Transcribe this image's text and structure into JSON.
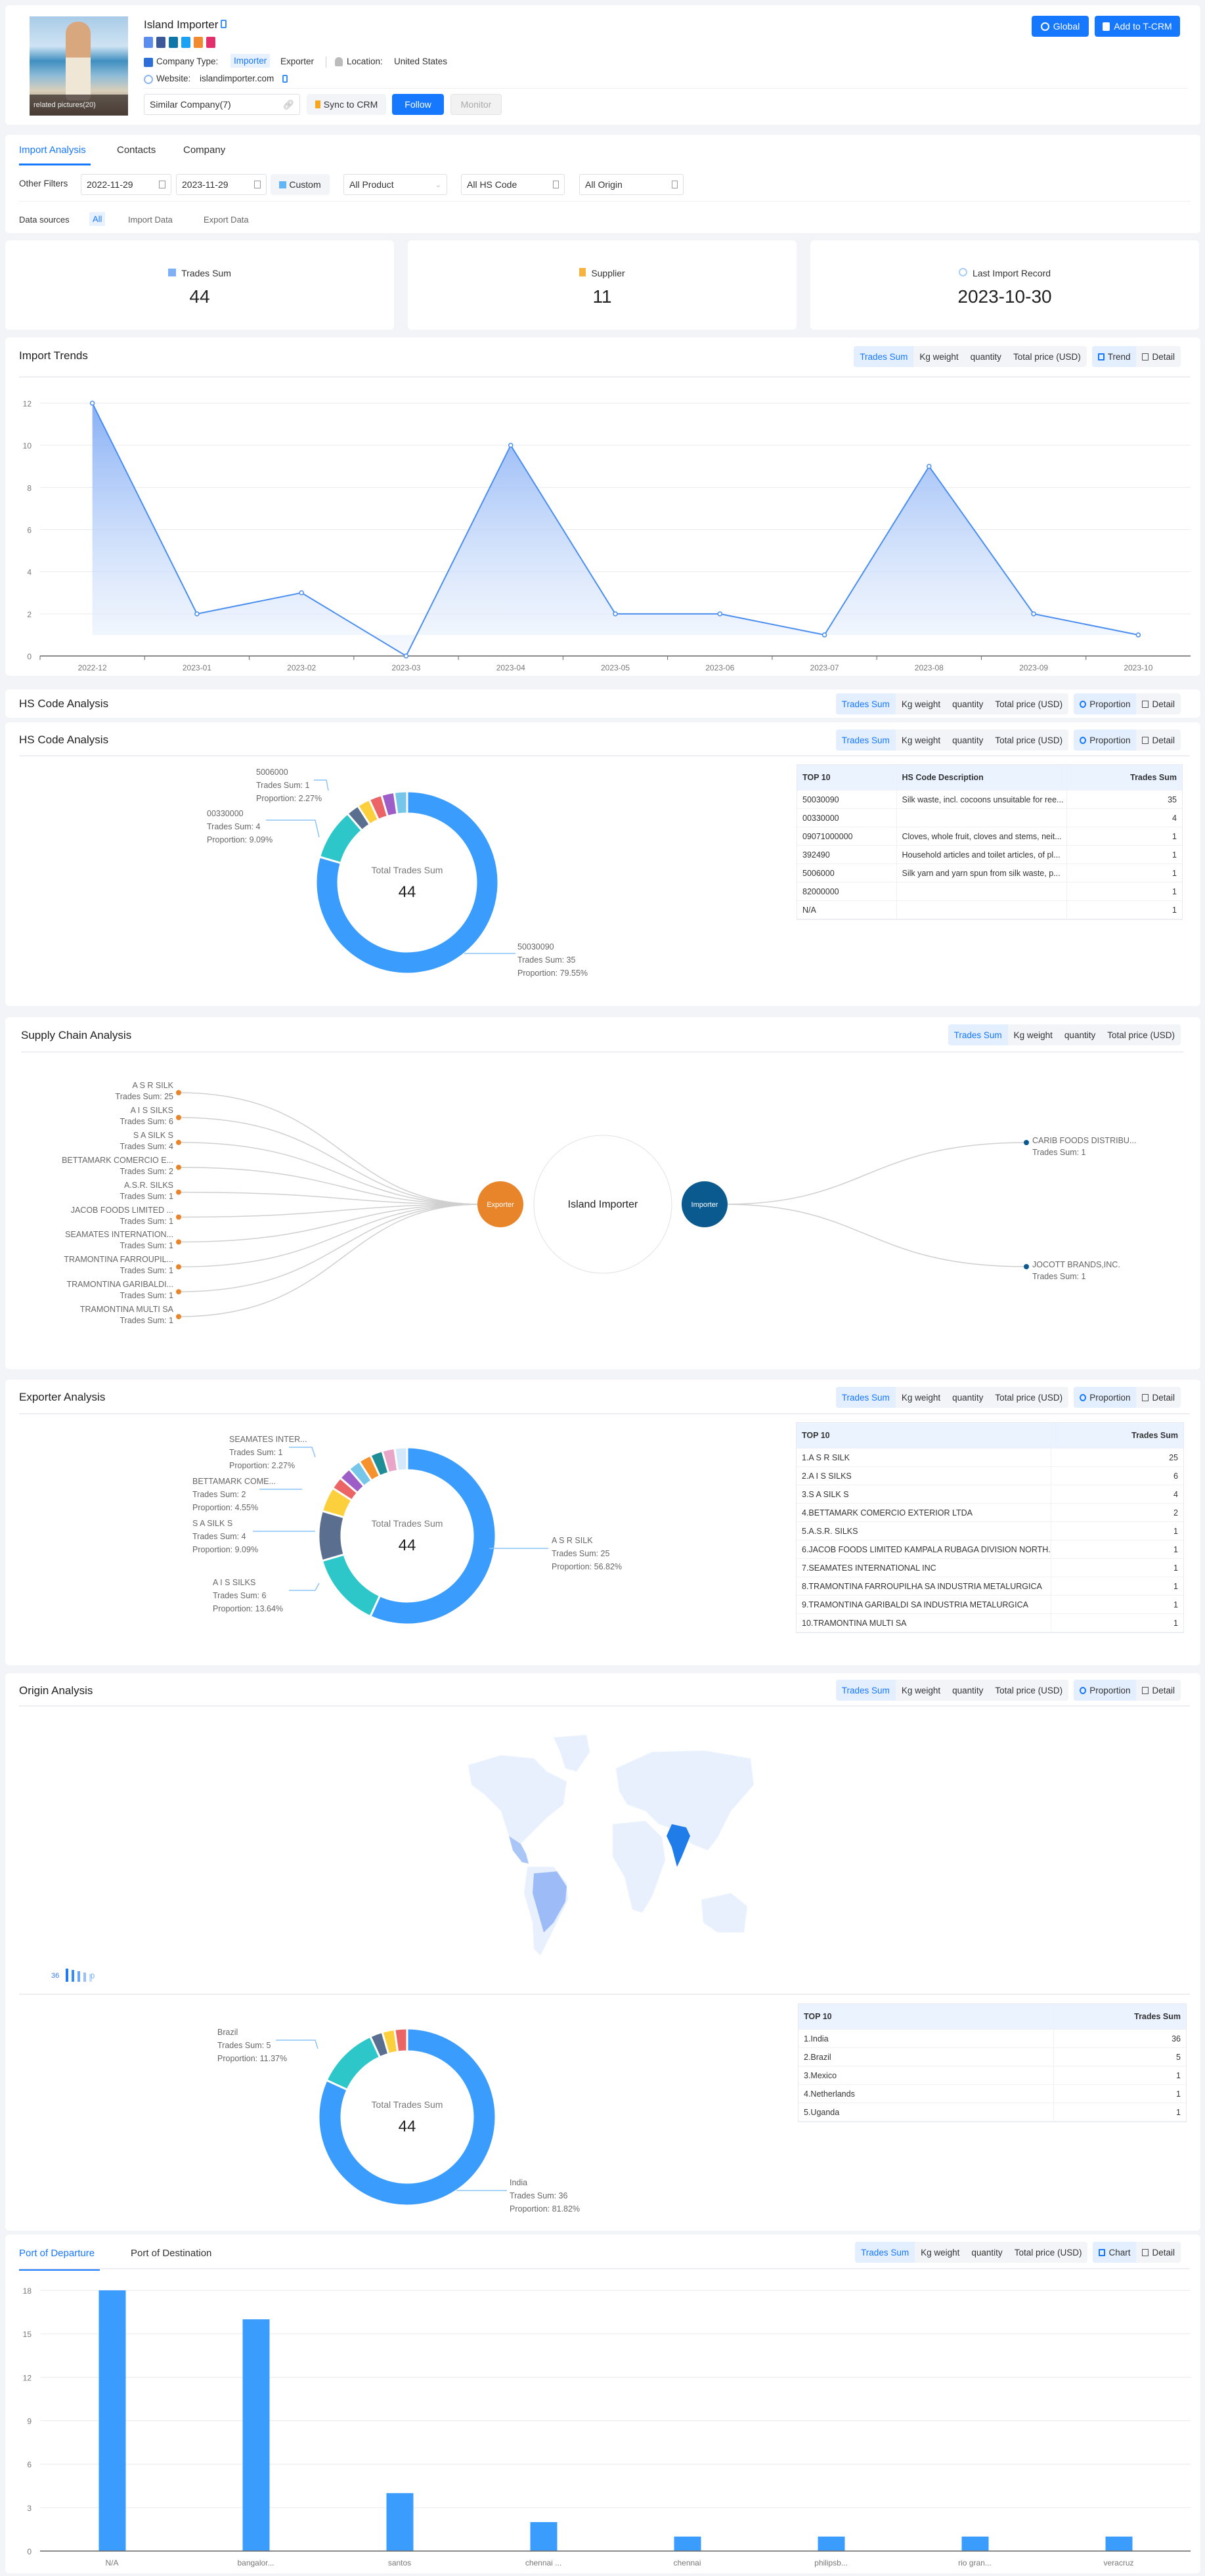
{
  "company": {
    "name": "Island Importer",
    "related_pictures": "related pictures(20)",
    "social_icons": [
      "website-icon",
      "facebook-icon",
      "linkedin-icon",
      "twitter-icon",
      "phone-icon",
      "instagram-icon"
    ],
    "type_label": "Company Type:",
    "types": [
      "Importer",
      "Exporter"
    ],
    "location_label": "Location:",
    "location": "United States",
    "website_label": "Website:",
    "website": "islandimporter.com"
  },
  "actions": {
    "global": "Global",
    "add_crm": "Add to T-CRM",
    "similar": "Similar Company(7)",
    "sync": "Sync to CRM",
    "follow": "Follow",
    "monitor": "Monitor"
  },
  "tabs": [
    "Import Analysis",
    "Contacts",
    "Company"
  ],
  "filters": {
    "label": "Other Filters",
    "start_date": "2022-11-29",
    "end_date": "2023-11-29",
    "custom": "Custom",
    "product": "All Product",
    "hs_code": "All HS Code",
    "origin": "All Origin"
  },
  "data_sources": {
    "label": "Data sources",
    "options": [
      "All",
      "Import Data",
      "Export Data"
    ]
  },
  "stats": [
    {
      "label": "Trades Sum",
      "value": "44",
      "icon": "bar-chart-icon"
    },
    {
      "label": "Supplier",
      "value": "11",
      "icon": "supplier-icon"
    },
    {
      "label": "Last Import Record",
      "value": "2023-10-30",
      "icon": "clock-icon"
    }
  ],
  "metrics": [
    "Trades Sum",
    "Kg weight",
    "quantity",
    "Total price (USD)"
  ],
  "sections": {
    "import_trends": {
      "title": "Import Trends",
      "views": [
        "Trend",
        "Detail"
      ]
    },
    "hs_code_top": {
      "title": "HS Code Analysis",
      "views": [
        "Proportion",
        "Detail"
      ]
    },
    "hs_code": {
      "title": "HS Code Analysis",
      "views": [
        "Proportion",
        "Detail"
      ]
    },
    "supply_chain": {
      "title": "Supply Chain Analysis"
    },
    "exporter": {
      "title": "Exporter Analysis",
      "views": [
        "Proportion",
        "Detail"
      ]
    },
    "origin": {
      "title": "Origin Analysis",
      "views": [
        "Proportion",
        "Detail"
      ]
    },
    "ports": {
      "tabs": [
        "Port of Departure",
        "Port of Destination"
      ],
      "views": [
        "Chart",
        "Detail"
      ]
    }
  },
  "donut_center_label": "Total Trades Sum",
  "donut_total": "44",
  "hs_table": {
    "headers": [
      "TOP 10",
      "HS Code Description",
      "Trades Sum"
    ],
    "rows": [
      [
        "50030090",
        "Silk waste, incl. cocoons unsuitable for ree...",
        "35"
      ],
      [
        "00330000",
        "",
        "4"
      ],
      [
        "09071000000",
        "Cloves, whole fruit, cloves and stems, neit...",
        "1"
      ],
      [
        "392490",
        "Household articles and toilet articles, of pl...",
        "1"
      ],
      [
        "5006000",
        "Silk yarn and yarn spun from silk waste, p...",
        "1"
      ],
      [
        "82000000",
        "",
        "1"
      ],
      [
        "N/A",
        "",
        "1"
      ]
    ]
  },
  "hs_labels": [
    {
      "name": "5006000",
      "sum": "Trades Sum: 1",
      "prop": "Proportion: 2.27%"
    },
    {
      "name": "00330000",
      "sum": "Trades Sum: 4",
      "prop": "Proportion: 9.09%"
    },
    {
      "name": "50030090",
      "sum": "Trades Sum: 35",
      "prop": "Proportion: 79.55%"
    }
  ],
  "supply_chain": {
    "center": "Island Importer",
    "exporter_node": "Exporter",
    "importer_node": "Importer",
    "exporters": [
      {
        "name": "A S R SILK",
        "sum": "Trades Sum: 25"
      },
      {
        "name": "A I S SILKS",
        "sum": "Trades Sum: 6"
      },
      {
        "name": "S A SILK S",
        "sum": "Trades Sum: 4"
      },
      {
        "name": "BETTAMARK COMERCIO E...",
        "sum": "Trades Sum: 2"
      },
      {
        "name": "A.S.R. SILKS",
        "sum": "Trades Sum: 1"
      },
      {
        "name": "JACOB FOODS LIMITED ...",
        "sum": "Trades Sum: 1"
      },
      {
        "name": "SEAMATES INTERNATION...",
        "sum": "Trades Sum: 1"
      },
      {
        "name": "TRAMONTINA FARROUPIL...",
        "sum": "Trades Sum: 1"
      },
      {
        "name": "TRAMONTINA GARIBALDI...",
        "sum": "Trades Sum: 1"
      },
      {
        "name": "TRAMONTINA MULTI SA",
        "sum": "Trades Sum: 1"
      }
    ],
    "importers": [
      {
        "name": "CARIB FOODS DISTRIBU...",
        "sum": "Trades Sum: 1"
      },
      {
        "name": "JOCOTT BRANDS,INC.",
        "sum": "Trades Sum: 1"
      }
    ],
    "exporter_color": "#e8852a",
    "importer_color": "#0a5a8f"
  },
  "exporter_table": {
    "headers": [
      "TOP 10",
      "Trades Sum"
    ],
    "rows": [
      [
        "1.A S R SILK",
        "25"
      ],
      [
        "2.A I S SILKS",
        "6"
      ],
      [
        "3.S A SILK S",
        "4"
      ],
      [
        "4.BETTAMARK COMERCIO EXTERIOR LTDA",
        "2"
      ],
      [
        "5.A.S.R. SILKS",
        "1"
      ],
      [
        "6.JACOB FOODS LIMITED KAMPALA RUBAGA DIVISION NORTH...",
        "1"
      ],
      [
        "7.SEAMATES INTERNATIONAL INC",
        "1"
      ],
      [
        "8.TRAMONTINA FARROUPILHA SA INDUSTRIA METALURGICA",
        "1"
      ],
      [
        "9.TRAMONTINA GARIBALDI SA INDUSTRIA METALURGICA",
        "1"
      ],
      [
        "10.TRAMONTINA MULTI SA",
        "1"
      ]
    ]
  },
  "exporter_labels": [
    {
      "name": "SEAMATES INTER...",
      "sum": "Trades Sum: 1",
      "prop": "Proportion: 2.27%"
    },
    {
      "name": "BETTAMARK COME...",
      "sum": "Trades Sum: 2",
      "prop": "Proportion: 4.55%"
    },
    {
      "name": "S A SILK S",
      "sum": "Trades Sum: 4",
      "prop": "Proportion: 9.09%"
    },
    {
      "name": "A I S SILKS",
      "sum": "Trades Sum: 6",
      "prop": "Proportion: 13.64%"
    },
    {
      "name": "A S R SILK",
      "sum": "Trades Sum: 25",
      "prop": "Proportion: 56.82%"
    }
  ],
  "origin_map": {
    "legend_max": "36",
    "legend_min": "0",
    "highlight": {
      "India": "#1f7ce8",
      "Brazil": "#9dbcf7",
      "Mexico": "#a9c6f7"
    },
    "base_color": "#e8f0fd"
  },
  "origin_table": {
    "headers": [
      "TOP 10",
      "Trades Sum"
    ],
    "rows": [
      [
        "1.India",
        "36"
      ],
      [
        "2.Brazil",
        "5"
      ],
      [
        "3.Mexico",
        "1"
      ],
      [
        "4.Netherlands",
        "1"
      ],
      [
        "5.Uganda",
        "1"
      ]
    ]
  },
  "origin_labels": [
    {
      "name": "Brazil",
      "sum": "Trades Sum: 5",
      "prop": "Proportion: 11.37%"
    },
    {
      "name": "India",
      "sum": "Trades Sum: 36",
      "prop": "Proportion: 81.82%"
    }
  ],
  "chart_data": [
    {
      "id": "import-trends",
      "type": "area",
      "categories": [
        "2022-12",
        "2023-01",
        "2023-02",
        "2023-03",
        "2023-04",
        "2023-05",
        "2023-06",
        "2023-07",
        "2023-08",
        "2023-09",
        "2023-10"
      ],
      "values": [
        12,
        2,
        3,
        0,
        10,
        2,
        2,
        1,
        9,
        2,
        1
      ],
      "ylim": [
        0,
        12
      ],
      "yticks": [
        "0",
        "2",
        "4",
        "6",
        "8",
        "10",
        "12"
      ],
      "grid": true,
      "color": "#4a8ef0"
    },
    {
      "id": "hs-code",
      "type": "pie",
      "donut": true,
      "total": 44,
      "categories": [
        "50030090",
        "00330000",
        "09071000000",
        "392490",
        "5006000",
        "82000000",
        "N/A"
      ],
      "values": [
        35,
        4,
        1,
        1,
        1,
        1,
        1
      ],
      "colors": [
        "#3a9cfc",
        "#2ec7c9",
        "#5a6f8f",
        "#fcd03d",
        "#ec6566",
        "#9d5fc7",
        "#75c6e8"
      ]
    },
    {
      "id": "exporter",
      "type": "pie",
      "donut": true,
      "total": 44,
      "categories": [
        "A S R SILK",
        "A I S SILKS",
        "S A SILK S",
        "BETTAMARK COMERCIO EXTERIOR LTDA",
        "A.S.R. SILKS",
        "JACOB FOODS LIMITED KAMPALA RUBAGA DIVISION NORTH...",
        "SEAMATES INTERNATIONAL INC",
        "TRAMONTINA FARROUPILHA SA INDUSTRIA METALURGICA",
        "TRAMONTINA GARIBALDI SA INDUSTRIA METALURGICA",
        "TRAMONTINA MULTI SA"
      ],
      "values": [
        25,
        6,
        4,
        2,
        1,
        1,
        1,
        1,
        1,
        1
      ],
      "colors": [
        "#3a9cfc",
        "#2ec7c9",
        "#5a6f8f",
        "#fcd03d",
        "#ec6566",
        "#9d5fc7",
        "#75c6e8",
        "#f5922e",
        "#1f8c96",
        "#e9a6c8",
        "#d3e8fb"
      ]
    },
    {
      "id": "origin",
      "type": "pie",
      "donut": true,
      "total": 44,
      "categories": [
        "India",
        "Brazil",
        "Mexico",
        "Netherlands",
        "Uganda"
      ],
      "values": [
        36,
        5,
        1,
        1,
        1
      ],
      "colors": [
        "#3a9cfc",
        "#2ec7c9",
        "#5a6f8f",
        "#fcd03d",
        "#ec6566"
      ]
    },
    {
      "id": "port-departure",
      "type": "bar",
      "categories": [
        "N/A",
        "bangalor...",
        "santos",
        "chennai ...",
        "chennai",
        "philipsb...",
        "rio gran...",
        "veracruz"
      ],
      "values": [
        18,
        16,
        4,
        2,
        1,
        1,
        1,
        1
      ],
      "ylim": [
        0,
        18
      ],
      "yticks": [
        "0",
        "3",
        "6",
        "9",
        "12",
        "15",
        "18"
      ],
      "grid": true,
      "color": "#3a9cfc"
    }
  ]
}
